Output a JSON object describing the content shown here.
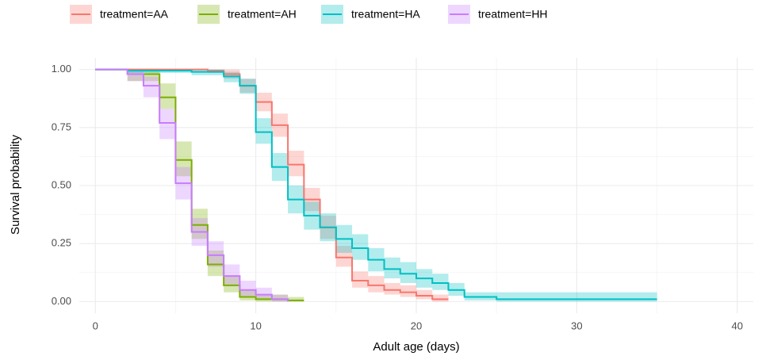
{
  "chart_data": {
    "type": "survival-step",
    "x_label": "Adult age (days)",
    "y_label": "Survival probability",
    "xlim": [
      -1,
      41
    ],
    "ylim": [
      -0.05,
      1.05
    ],
    "xticks": [
      0,
      10,
      20,
      30,
      40
    ],
    "yticks": [
      {
        "value": 0,
        "label": "0.00"
      },
      {
        "value": 0.25,
        "label": "0.25"
      },
      {
        "value": 0.5,
        "label": "0.50"
      },
      {
        "value": 0.75,
        "label": "0.75"
      },
      {
        "value": 1,
        "label": "1.00"
      }
    ],
    "grid": true,
    "legend": "top",
    "series": [
      {
        "name": "treatment=AA",
        "color": "#f8766d",
        "x": [
          0,
          7,
          8,
          9,
          10,
          11,
          12,
          13,
          14,
          15,
          16,
          17,
          18,
          19,
          20,
          21,
          22
        ],
        "values": [
          1,
          0.995,
          0.98,
          0.93,
          0.86,
          0.76,
          0.59,
          0.44,
          0.32,
          0.19,
          0.09,
          0.07,
          0.05,
          0.04,
          0.025,
          0.01,
          0.01
        ],
        "lower": [
          1,
          0.985,
          0.96,
          0.9,
          0.82,
          0.71,
          0.54,
          0.39,
          0.27,
          0.15,
          0.06,
          0.04,
          0.03,
          0.02,
          0.01,
          0,
          0
        ],
        "upper": [
          1,
          1,
          1,
          0.96,
          0.9,
          0.81,
          0.65,
          0.49,
          0.37,
          0.24,
          0.13,
          0.11,
          0.08,
          0.07,
          0.05,
          0.03,
          0.03
        ]
      },
      {
        "name": "treatment=AH",
        "color": "#7cae00",
        "x": [
          0,
          2,
          4,
          5,
          6,
          7,
          8,
          9,
          10,
          11,
          12,
          13
        ],
        "values": [
          1,
          0.98,
          0.88,
          0.61,
          0.33,
          0.16,
          0.07,
          0.02,
          0.01,
          0.01,
          0.005,
          0.005
        ],
        "lower": [
          1,
          0.95,
          0.83,
          0.54,
          0.27,
          0.11,
          0.04,
          0.005,
          0,
          0,
          0,
          0
        ],
        "upper": [
          1,
          1,
          0.94,
          0.69,
          0.4,
          0.22,
          0.11,
          0.05,
          0.03,
          0.03,
          0.02,
          0.02
        ]
      },
      {
        "name": "treatment=HA",
        "color": "#00bfc4",
        "x": [
          0,
          2,
          6,
          8,
          9,
          10,
          11,
          12,
          13,
          14,
          15,
          16,
          17,
          18,
          19,
          20,
          21,
          22,
          23,
          25,
          35
        ],
        "values": [
          1,
          0.995,
          0.99,
          0.97,
          0.93,
          0.73,
          0.58,
          0.44,
          0.37,
          0.32,
          0.27,
          0.23,
          0.18,
          0.14,
          0.12,
          0.1,
          0.08,
          0.05,
          0.02,
          0.01,
          0.01
        ],
        "lower": [
          1,
          0.985,
          0.975,
          0.945,
          0.895,
          0.68,
          0.52,
          0.38,
          0.31,
          0.26,
          0.21,
          0.18,
          0.13,
          0.1,
          0.08,
          0.06,
          0.05,
          0.025,
          0.005,
          0,
          0
        ],
        "upper": [
          1,
          1,
          1,
          0.99,
          0.96,
          0.79,
          0.64,
          0.5,
          0.43,
          0.38,
          0.33,
          0.29,
          0.23,
          0.19,
          0.17,
          0.14,
          0.12,
          0.08,
          0.04,
          0.04,
          0.04
        ]
      },
      {
        "name": "treatment=HH",
        "color": "#c77cff",
        "x": [
          0,
          2,
          3,
          4,
          5,
          6,
          7,
          8,
          9,
          10,
          11,
          12
        ],
        "values": [
          1,
          0.98,
          0.93,
          0.77,
          0.51,
          0.3,
          0.2,
          0.11,
          0.05,
          0.03,
          0.01,
          0
        ],
        "lower": [
          1,
          0.95,
          0.88,
          0.7,
          0.44,
          0.24,
          0.15,
          0.07,
          0.02,
          0.01,
          0,
          0
        ],
        "upper": [
          1,
          1,
          0.97,
          0.83,
          0.58,
          0.36,
          0.26,
          0.16,
          0.09,
          0.06,
          0.03,
          0.02
        ]
      }
    ]
  }
}
